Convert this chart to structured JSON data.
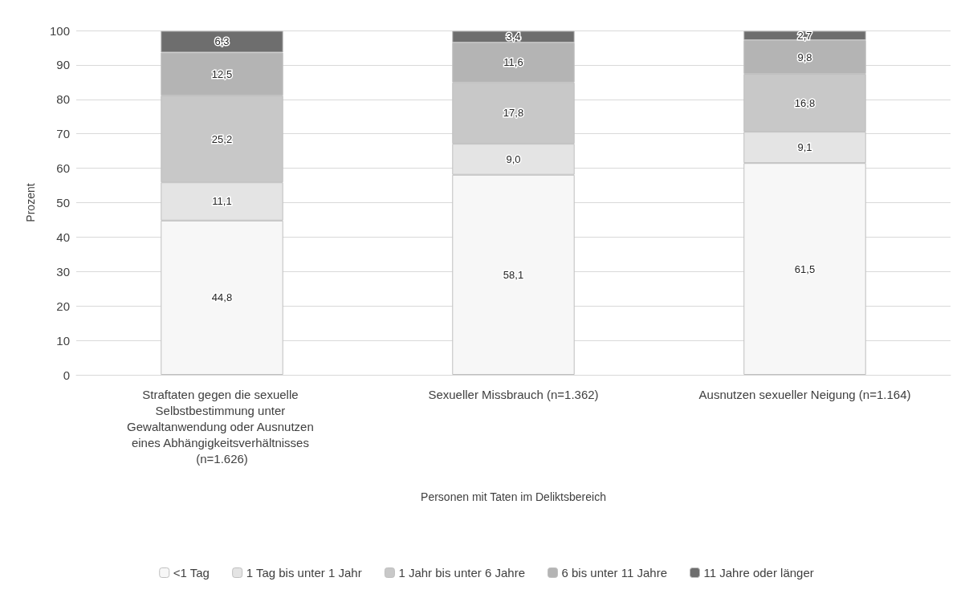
{
  "chart_data": {
    "type": "bar",
    "stacked": true,
    "ylabel": "Prozent",
    "xlabel": "Personen mit Taten im Deliktsbereich",
    "categories": [
      "Straftaten gegen die sexuelle Selbstbestimmung unter Gewaltanwendung oder Ausnutzen eines Abhängigkeitsverhältnisses (n=1.626)",
      "Sexueller Missbrauch (n=1.362)",
      "Ausnutzen sexueller Neigung (n=1.164)"
    ],
    "series": [
      {
        "name": "<1 Tag",
        "color": "#f7f7f7",
        "values": [
          44.8,
          58.1,
          61.5
        ],
        "value_labels": [
          "44,8",
          "58,1",
          "61,5"
        ]
      },
      {
        "name": "1 Tag bis unter 1 Jahr",
        "color": "#e4e4e4",
        "values": [
          11.1,
          9.0,
          9.1
        ],
        "value_labels": [
          "11,1",
          "9,0",
          "9,1"
        ]
      },
      {
        "name": "1 Jahr bis unter 6 Jahre",
        "color": "#c8c8c8",
        "values": [
          25.2,
          17.8,
          16.8
        ],
        "value_labels": [
          "25,2",
          "17,8",
          "16,8"
        ]
      },
      {
        "name": "6 bis unter 11 Jahre",
        "color": "#b4b4b4",
        "values": [
          12.5,
          11.6,
          9.8
        ],
        "value_labels": [
          "12,5",
          "11,6",
          "9,8"
        ]
      },
      {
        "name": "11 Jahre oder länger",
        "color": "#6e6e6e",
        "values": [
          6.3,
          3.4,
          2.7
        ],
        "value_labels": [
          "6,3",
          "3,4",
          "2,7"
        ]
      }
    ],
    "ylim": [
      0,
      100
    ],
    "yticks": [
      0,
      10,
      20,
      30,
      40,
      50,
      60,
      70,
      80,
      90,
      100
    ],
    "grid": "y",
    "legend": "bottom"
  }
}
